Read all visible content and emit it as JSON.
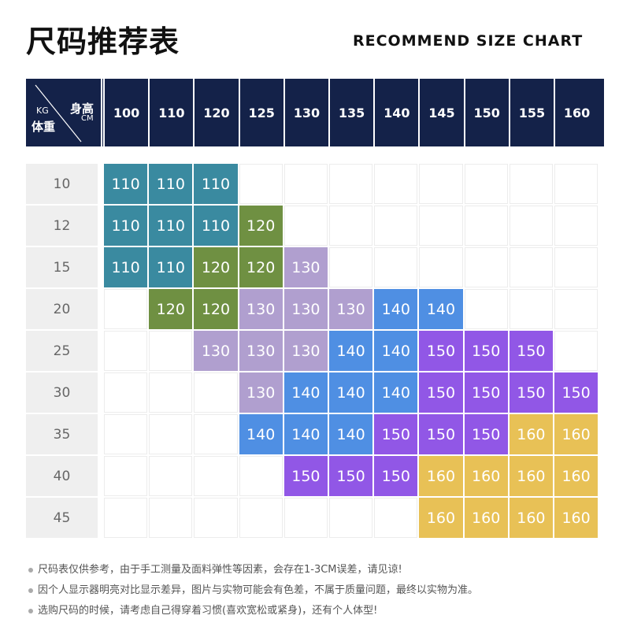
{
  "title": "尺码推荐表",
  "subtitle": "RECOMMEND SIZE CHART",
  "corner": {
    "kg": "KG",
    "weight": "体重",
    "height": "身高",
    "cm": "CM"
  },
  "heights": [
    "100",
    "110",
    "120",
    "125",
    "130",
    "135",
    "140",
    "145",
    "150",
    "155",
    "160"
  ],
  "weights": [
    "10",
    "12",
    "15",
    "20",
    "25",
    "30",
    "35",
    "40",
    "45"
  ],
  "sizes": [
    [
      "110",
      "110",
      "110",
      "",
      "",
      "",
      "",
      "",
      "",
      "",
      ""
    ],
    [
      "110",
      "110",
      "110",
      "120",
      "",
      "",
      "",
      "",
      "",
      "",
      ""
    ],
    [
      "110",
      "110",
      "120",
      "120",
      "130",
      "",
      "",
      "",
      "",
      "",
      ""
    ],
    [
      "",
      "120",
      "120",
      "130",
      "130",
      "130",
      "140",
      "140",
      "",
      "",
      ""
    ],
    [
      "",
      "",
      "130",
      "130",
      "130",
      "140",
      "140",
      "150",
      "150",
      "150",
      ""
    ],
    [
      "",
      "",
      "",
      "130",
      "140",
      "140",
      "140",
      "150",
      "150",
      "150",
      "150"
    ],
    [
      "",
      "",
      "",
      "140",
      "140",
      "140",
      "150",
      "150",
      "150",
      "160",
      "160"
    ],
    [
      "",
      "",
      "",
      "",
      "150",
      "150",
      "150",
      "160",
      "160",
      "160",
      "160"
    ],
    [
      "",
      "",
      "",
      "",
      "",
      "",
      "",
      "160",
      "160",
      "160",
      "160"
    ]
  ],
  "size_colors": {
    "110": "#3a8aa0",
    "120": "#6f9042",
    "130": "#b09fcf",
    "140": "#4f8fe3",
    "150": "#9157e6",
    "160": "#e8c156"
  },
  "header_color": "#142249",
  "notes": [
    "尺码表仅供参考，由于手工测量及面料弹性等因素，会存在1-3CM误差，请见谅!",
    "因个人显示器明亮对比显示差异，图片与实物可能会有色差，不属于质量问题，最终以实物为准。",
    "选购尺码的时候，请考虑自己得穿着习惯(喜欢宽松或紧身)，还有个人体型!"
  ]
}
